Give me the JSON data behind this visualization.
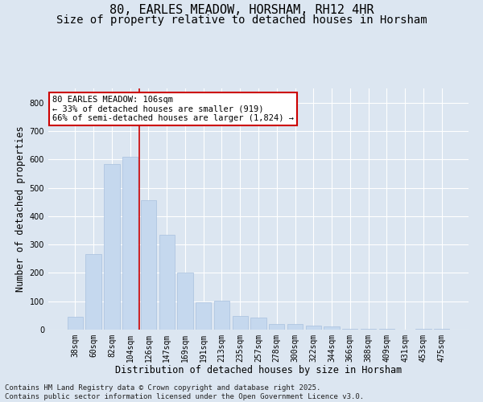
{
  "title": "80, EARLES MEADOW, HORSHAM, RH12 4HR",
  "subtitle": "Size of property relative to detached houses in Horsham",
  "xlabel": "Distribution of detached houses by size in Horsham",
  "ylabel": "Number of detached properties",
  "categories": [
    "38sqm",
    "60sqm",
    "82sqm",
    "104sqm",
    "126sqm",
    "147sqm",
    "169sqm",
    "191sqm",
    "213sqm",
    "235sqm",
    "257sqm",
    "278sqm",
    "300sqm",
    "322sqm",
    "344sqm",
    "366sqm",
    "388sqm",
    "409sqm",
    "431sqm",
    "453sqm",
    "475sqm"
  ],
  "values": [
    45,
    265,
    585,
    610,
    455,
    335,
    200,
    95,
    103,
    48,
    42,
    20,
    20,
    15,
    10,
    3,
    3,
    3,
    0,
    3,
    2
  ],
  "bar_color": "#c5d8ee",
  "bar_edge_color": "#a8c0de",
  "background_color": "#dce6f1",
  "plot_background": "#dce6f1",
  "grid_color": "#ffffff",
  "vline_x": 3.5,
  "vline_color": "#cc0000",
  "annotation_text": "80 EARLES MEADOW: 106sqm\n← 33% of detached houses are smaller (919)\n66% of semi-detached houses are larger (1,824) →",
  "annotation_box_color": "#ffffff",
  "annotation_box_edge": "#cc0000",
  "footer_text": "Contains HM Land Registry data © Crown copyright and database right 2025.\nContains public sector information licensed under the Open Government Licence v3.0.",
  "ylim": [
    0,
    850
  ],
  "yticks": [
    0,
    100,
    200,
    300,
    400,
    500,
    600,
    700,
    800
  ],
  "title_fontsize": 11,
  "subtitle_fontsize": 10,
  "axis_label_fontsize": 8.5,
  "tick_fontsize": 7,
  "annot_fontsize": 7.5,
  "footer_fontsize": 6.5
}
